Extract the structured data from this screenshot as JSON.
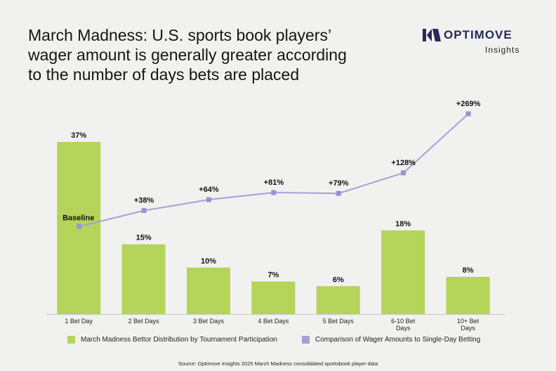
{
  "title_lines": [
    "March Madness: U.S. sports book players’",
    "wager amount is generally greater according",
    "to the number of days bets are placed"
  ],
  "logo": {
    "word": "OPTIMOVE",
    "sub": "Insights",
    "color": "#27285c"
  },
  "colors": {
    "bar": "#b5d45a",
    "line": "#a89fd4",
    "marker": "#9c91cf",
    "background": "#f1f1f0"
  },
  "chart_data": {
    "type": "bar+line",
    "categories": [
      "1 Bet Day",
      "2 Bet Days",
      "3 Bet Days",
      "4 Bet Days",
      "5 Bet Days",
      "6-10 Bet Days",
      "10+ Bet Days"
    ],
    "series": [
      {
        "name": "March Madness Bettor Distribution by Tournament Participation",
        "type": "bar",
        "values": [
          37,
          15,
          10,
          7,
          6,
          18,
          8
        ],
        "labels": [
          "37%",
          "15%",
          "10%",
          "7%",
          "6%",
          "18%",
          "8%"
        ]
      },
      {
        "name": "Comparison of Wager Amounts to Single-Day Betting",
        "type": "line",
        "values": [
          0,
          38,
          64,
          81,
          79,
          128,
          269
        ],
        "labels": [
          "Baseline",
          "+38%",
          "+64%",
          "+81%",
          "+79%",
          "+128%",
          "+269%"
        ]
      }
    ],
    "bar_ylim": [
      0,
      40
    ],
    "line_ylim": [
      -80,
      269
    ],
    "legend_position": "bottom"
  },
  "legend": [
    "March Madness Bettor Distribution by Tournament Participation",
    "Comparison of Wager Amounts to Single-Day Betting"
  ],
  "source": "Source: Optimove Insights 2025 March Madness consolidated sportsbook player data"
}
